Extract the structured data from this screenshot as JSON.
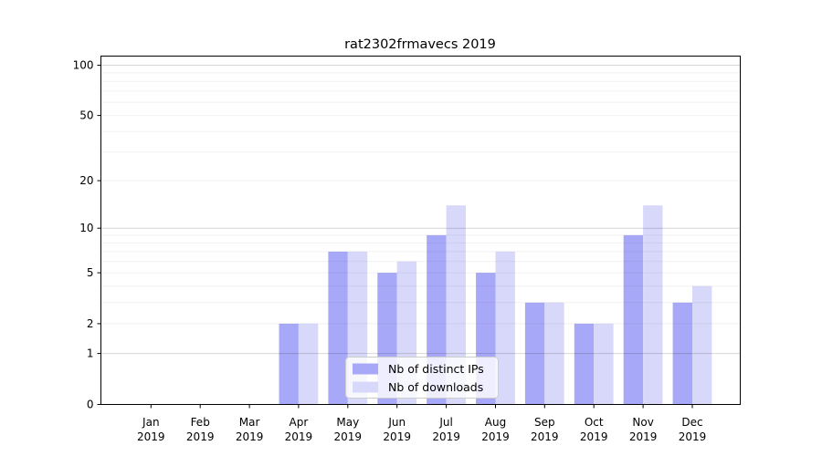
{
  "chart_data": {
    "type": "bar",
    "title": "rat2302frmavecs 2019",
    "categories": [
      "Jan 2019",
      "Feb 2019",
      "Mar 2019",
      "Apr 2019",
      "May 2019",
      "Jun 2019",
      "Jul 2019",
      "Aug 2019",
      "Sep 2019",
      "Oct 2019",
      "Nov 2019",
      "Dec 2019"
    ],
    "series": [
      {
        "name": "Nb of distinct IPs",
        "color": "#a8a8f8",
        "values": [
          0,
          0,
          0,
          2,
          7,
          5,
          9,
          5,
          3,
          2,
          9,
          3
        ]
      },
      {
        "name": "Nb of downloads",
        "color": "#d8d8fa",
        "values": [
          0,
          0,
          0,
          2,
          7,
          6,
          14,
          7,
          3,
          2,
          14,
          4
        ]
      }
    ],
    "yticks": [
      0,
      1,
      2,
      5,
      10,
      20,
      50,
      100
    ],
    "y_scale": "log10(1+v)",
    "ylim": [
      0,
      113
    ],
    "grid": "on",
    "grid_major_at": [
      1,
      10,
      100
    ],
    "grid_minor_at": [
      2,
      3,
      4,
      5,
      6,
      7,
      8,
      9,
      20,
      30,
      40,
      50,
      60,
      70,
      80,
      90
    ],
    "legend_position": "lower center",
    "xlabel": "",
    "ylabel": "",
    "colors": {
      "axis": "#000000",
      "grid_major": "rgba(0,0,0,0.16)",
      "grid_minor": "rgba(0,0,0,0.055)",
      "legend_border": "#cccccc"
    }
  }
}
